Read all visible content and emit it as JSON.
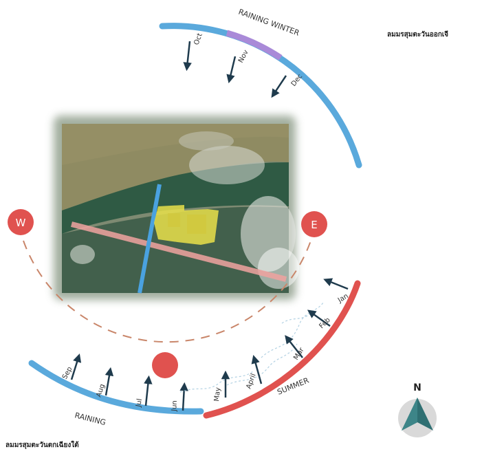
{
  "seasons": {
    "raining_winter": "RAINING WINTER",
    "raining": "RAINING",
    "summer": "SUMMER"
  },
  "wind_labels": {
    "northeast_monsoon": "ลมมรสุมตะวันออกเจี",
    "southwest_monsoon": "ลมมรสุมตะวันตกเฉียงใต้"
  },
  "directions": {
    "west": "W",
    "east": "E",
    "north": "N"
  },
  "months": {
    "winter": [
      "Oct",
      "Nov",
      "Dec"
    ],
    "raining": [
      "Sep",
      "Aug",
      "Jul",
      "Jun"
    ],
    "summer": [
      "May",
      "April",
      "Mar",
      "Feb",
      "Jan"
    ]
  },
  "colors": {
    "blue_arc": "#5aa9dc",
    "purple_arc": "#a98ad8",
    "red_arc": "#e0524f",
    "dashed_path": "#c9866a",
    "site": "#e9e04a",
    "arrow": "#1f3b4d",
    "compass": "#2f6f72"
  }
}
